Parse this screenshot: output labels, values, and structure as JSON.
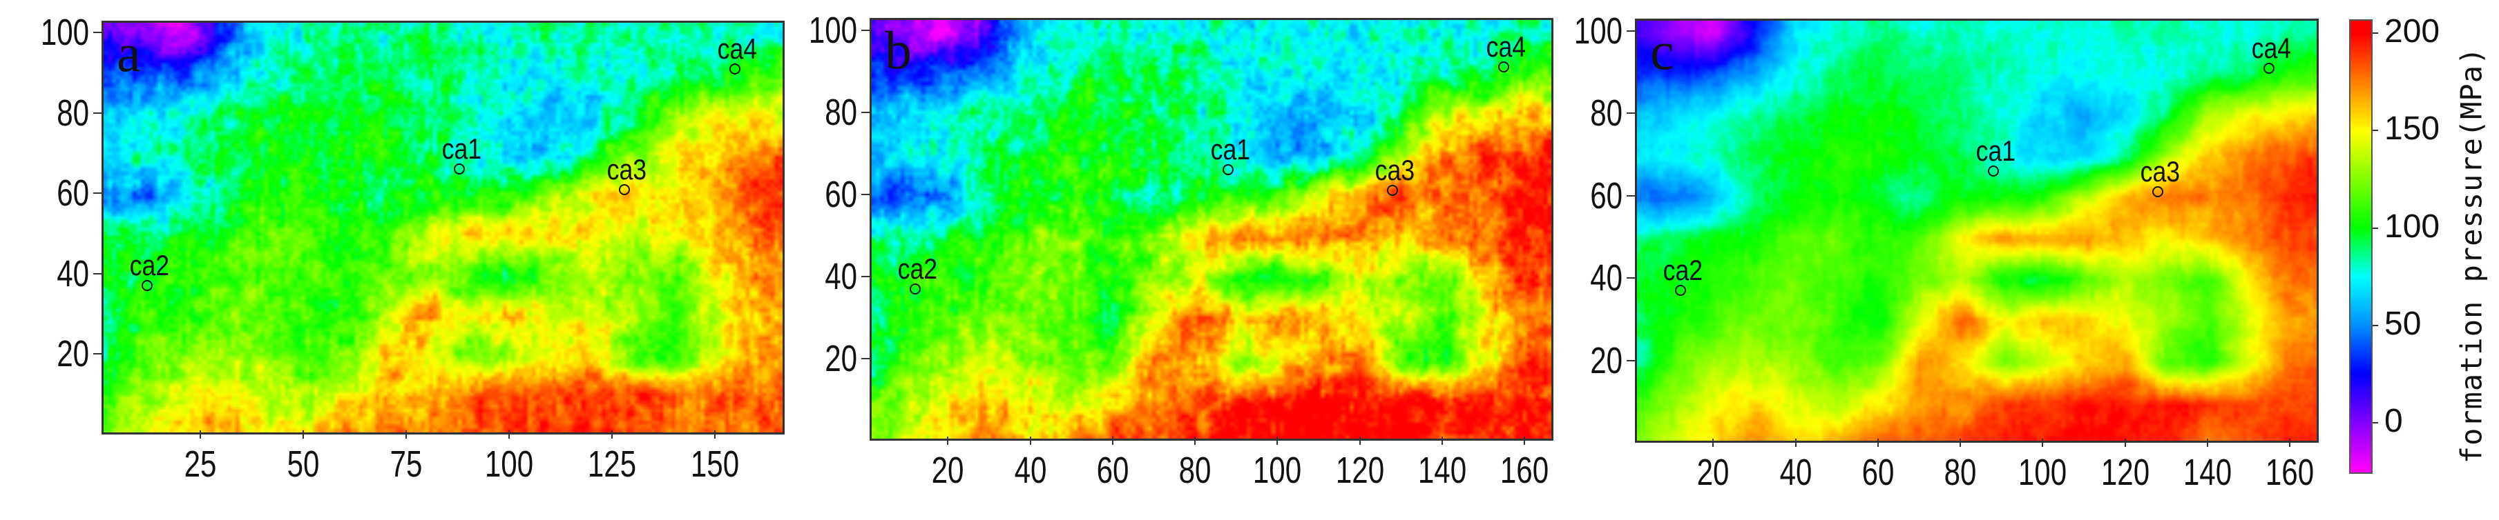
{
  "chart_data": [
    {
      "type": "heatmap",
      "panel_label": "a",
      "xlim": [
        1,
        166
      ],
      "ylim": [
        1,
        103
      ],
      "x_ticks": [
        25,
        50,
        75,
        100,
        125,
        150
      ],
      "y_ticks": [
        20,
        40,
        60,
        80,
        100
      ],
      "grid_x": [
        0,
        10,
        20,
        30,
        40,
        50,
        60,
        70,
        80,
        90,
        100,
        110,
        120,
        130,
        140,
        150,
        160
      ],
      "grid_y": [
        100,
        90,
        80,
        70,
        60,
        50,
        40,
        30,
        20,
        10,
        0
      ],
      "values": [
        [
          20,
          0,
          -15,
          30,
          75,
          80,
          90,
          80,
          85,
          80,
          80,
          80,
          85,
          85,
          80,
          80,
          85
        ],
        [
          40,
          40,
          40,
          60,
          80,
          90,
          95,
          95,
          90,
          85,
          80,
          75,
          80,
          80,
          85,
          90,
          110
        ],
        [
          60,
          70,
          80,
          90,
          95,
          100,
          100,
          95,
          90,
          80,
          70,
          60,
          70,
          90,
          130,
          145,
          150
        ],
        [
          70,
          80,
          85,
          95,
          100,
          105,
          105,
          100,
          95,
          80,
          70,
          65,
          90,
          130,
          150,
          160,
          175
        ],
        [
          50,
          45,
          60,
          90,
          100,
          105,
          95,
          85,
          100,
          100,
          100,
          130,
          150,
          155,
          160,
          165,
          190
        ],
        [
          90,
          95,
          100,
          105,
          120,
          120,
          105,
          110,
          140,
          160,
          155,
          160,
          150,
          140,
          150,
          160,
          180
        ],
        [
          100,
          100,
          105,
          115,
          120,
          110,
          105,
          120,
          130,
          100,
          95,
          110,
          130,
          120,
          110,
          150,
          170
        ],
        [
          90,
          105,
          110,
          120,
          120,
          110,
          100,
          140,
          175,
          140,
          160,
          150,
          140,
          130,
          115,
          140,
          160
        ],
        [
          80,
          115,
          125,
          130,
          125,
          110,
          120,
          165,
          150,
          120,
          130,
          150,
          160,
          110,
          105,
          140,
          170
        ],
        [
          110,
          130,
          145,
          150,
          140,
          130,
          145,
          160,
          165,
          180,
          185,
          190,
          185,
          190,
          185,
          180,
          180
        ],
        [
          120,
          140,
          150,
          170,
          150,
          160,
          175,
          175,
          180,
          185,
          190,
          195,
          195,
          190,
          170,
          180,
          185
        ]
      ],
      "markers": [
        {
          "label": "ca1",
          "x": 88,
          "y": 66
        },
        {
          "label": "ca2",
          "x": 12,
          "y": 37
        },
        {
          "label": "ca3",
          "x": 128,
          "y": 61
        },
        {
          "label": "ca4",
          "x": 155,
          "y": 91
        }
      ]
    },
    {
      "type": "heatmap",
      "panel_label": "b",
      "xlim": [
        1,
        166
      ],
      "ylim": [
        1,
        103
      ],
      "x_ticks": [
        20,
        40,
        60,
        80,
        100,
        120,
        140,
        160
      ],
      "y_ticks": [
        20,
        40,
        60,
        80,
        100
      ],
      "grid_x": [
        0,
        10,
        20,
        30,
        40,
        50,
        60,
        70,
        80,
        90,
        100,
        110,
        120,
        130,
        140,
        150,
        160
      ],
      "grid_y": [
        100,
        90,
        80,
        70,
        60,
        50,
        40,
        30,
        20,
        10,
        0
      ],
      "values": [
        [
          10,
          -10,
          -20,
          20,
          65,
          75,
          85,
          75,
          80,
          75,
          75,
          75,
          80,
          80,
          75,
          75,
          85
        ],
        [
          30,
          30,
          35,
          55,
          75,
          85,
          95,
          90,
          85,
          80,
          75,
          70,
          75,
          75,
          85,
          90,
          110
        ],
        [
          55,
          65,
          75,
          85,
          90,
          100,
          100,
          95,
          85,
          75,
          60,
          55,
          65,
          90,
          140,
          150,
          160
        ],
        [
          65,
          75,
          80,
          90,
          100,
          105,
          105,
          100,
          90,
          75,
          60,
          60,
          90,
          140,
          170,
          185,
          195
        ],
        [
          40,
          35,
          55,
          85,
          100,
          105,
          95,
          80,
          100,
          100,
          110,
          150,
          175,
          190,
          180,
          185,
          200
        ],
        [
          85,
          90,
          100,
          105,
          120,
          125,
          110,
          120,
          160,
          180,
          175,
          180,
          170,
          160,
          170,
          180,
          195
        ],
        [
          95,
          95,
          105,
          115,
          125,
          115,
          105,
          125,
          140,
          100,
          95,
          115,
          140,
          125,
          115,
          160,
          185
        ],
        [
          85,
          105,
          115,
          125,
          125,
          110,
          100,
          150,
          190,
          155,
          175,
          165,
          150,
          135,
          115,
          150,
          175
        ],
        [
          75,
          115,
          130,
          140,
          130,
          115,
          125,
          180,
          165,
          125,
          140,
          165,
          180,
          110,
          105,
          150,
          185
        ],
        [
          110,
          135,
          150,
          160,
          150,
          140,
          160,
          175,
          180,
          195,
          200,
          205,
          200,
          205,
          200,
          190,
          195
        ],
        [
          120,
          145,
          160,
          180,
          160,
          175,
          190,
          190,
          195,
          200,
          205,
          205,
          205,
          200,
          180,
          190,
          200
        ]
      ],
      "markers": [
        {
          "label": "ca1",
          "x": 88,
          "y": 66
        },
        {
          "label": "ca2",
          "x": 12,
          "y": 37
        },
        {
          "label": "ca3",
          "x": 128,
          "y": 61
        },
        {
          "label": "ca4",
          "x": 155,
          "y": 91
        }
      ]
    },
    {
      "type": "heatmap",
      "panel_label": "c",
      "xlim": [
        1,
        166
      ],
      "ylim": [
        1,
        103
      ],
      "x_ticks": [
        20,
        40,
        60,
        80,
        100,
        120,
        140,
        160
      ],
      "y_ticks": [
        20,
        40,
        60,
        80,
        100
      ],
      "grid_x": [
        0,
        10,
        20,
        30,
        40,
        50,
        60,
        70,
        80,
        90,
        100,
        110,
        120,
        130,
        140,
        150,
        160
      ],
      "grid_y": [
        100,
        90,
        80,
        70,
        60,
        50,
        40,
        30,
        20,
        10,
        0
      ],
      "values": [
        [
          15,
          -5,
          -18,
          25,
          70,
          78,
          88,
          78,
          82,
          78,
          78,
          78,
          82,
          82,
          78,
          78,
          85
        ],
        [
          35,
          35,
          38,
          58,
          78,
          88,
          95,
          92,
          88,
          82,
          78,
          72,
          78,
          78,
          85,
          90,
          110
        ],
        [
          58,
          68,
          78,
          88,
          92,
          100,
          100,
          95,
          88,
          78,
          65,
          58,
          68,
          90,
          135,
          148,
          155
        ],
        [
          68,
          78,
          82,
          92,
          100,
          105,
          105,
          100,
          92,
          78,
          65,
          62,
          90,
          135,
          162,
          175,
          185
        ],
        [
          45,
          40,
          58,
          88,
          100,
          105,
          95,
          82,
          100,
          100,
          105,
          140,
          168,
          180,
          172,
          178,
          195
        ],
        [
          88,
          92,
          100,
          105,
          118,
          120,
          108,
          115,
          150,
          172,
          168,
          172,
          162,
          150,
          160,
          172,
          188
        ],
        [
          98,
          98,
          105,
          115,
          120,
          112,
          105,
          122,
          135,
          100,
          95,
          112,
          135,
          122,
          112,
          155,
          178
        ],
        [
          88,
          105,
          112,
          122,
          122,
          110,
          100,
          145,
          182,
          148,
          168,
          158,
          145,
          132,
          115,
          145,
          168
        ],
        [
          78,
          115,
          128,
          135,
          128,
          112,
          122,
          172,
          158,
          122,
          135,
          158,
          170,
          110,
          105,
          145,
          178
        ],
        [
          110,
          132,
          148,
          155,
          145,
          135,
          152,
          168,
          172,
          188,
          192,
          198,
          192,
          198,
          192,
          185,
          188
        ],
        [
          120,
          142,
          155,
          175,
          155,
          168,
          182,
          182,
          188,
          192,
          198,
          200,
          200,
          195,
          175,
          185,
          192
        ]
      ],
      "markers": [
        {
          "label": "ca1",
          "x": 88,
          "y": 66
        },
        {
          "label": "ca2",
          "x": 12,
          "y": 37
        },
        {
          "label": "ca3",
          "x": 128,
          "y": 61
        },
        {
          "label": "ca4",
          "x": 155,
          "y": 91
        }
      ]
    }
  ],
  "colorbar": {
    "label": "formation pressure(MPa)",
    "range": [
      -26,
      207
    ],
    "ticks": [
      200,
      150,
      100,
      50,
      0
    ],
    "colormap": [
      {
        "value": 200,
        "color": "#ff0000"
      },
      {
        "value": 175,
        "color": "#ff8000"
      },
      {
        "value": 150,
        "color": "#ffff00"
      },
      {
        "value": 100,
        "color": "#00ff00"
      },
      {
        "value": 75,
        "color": "#00ffff"
      },
      {
        "value": 50,
        "color": "#0090ff"
      },
      {
        "value": 25,
        "color": "#0000ff"
      },
      {
        "value": 0,
        "color": "#8000ff"
      },
      {
        "value": -25,
        "color": "#ff00ff"
      }
    ]
  }
}
